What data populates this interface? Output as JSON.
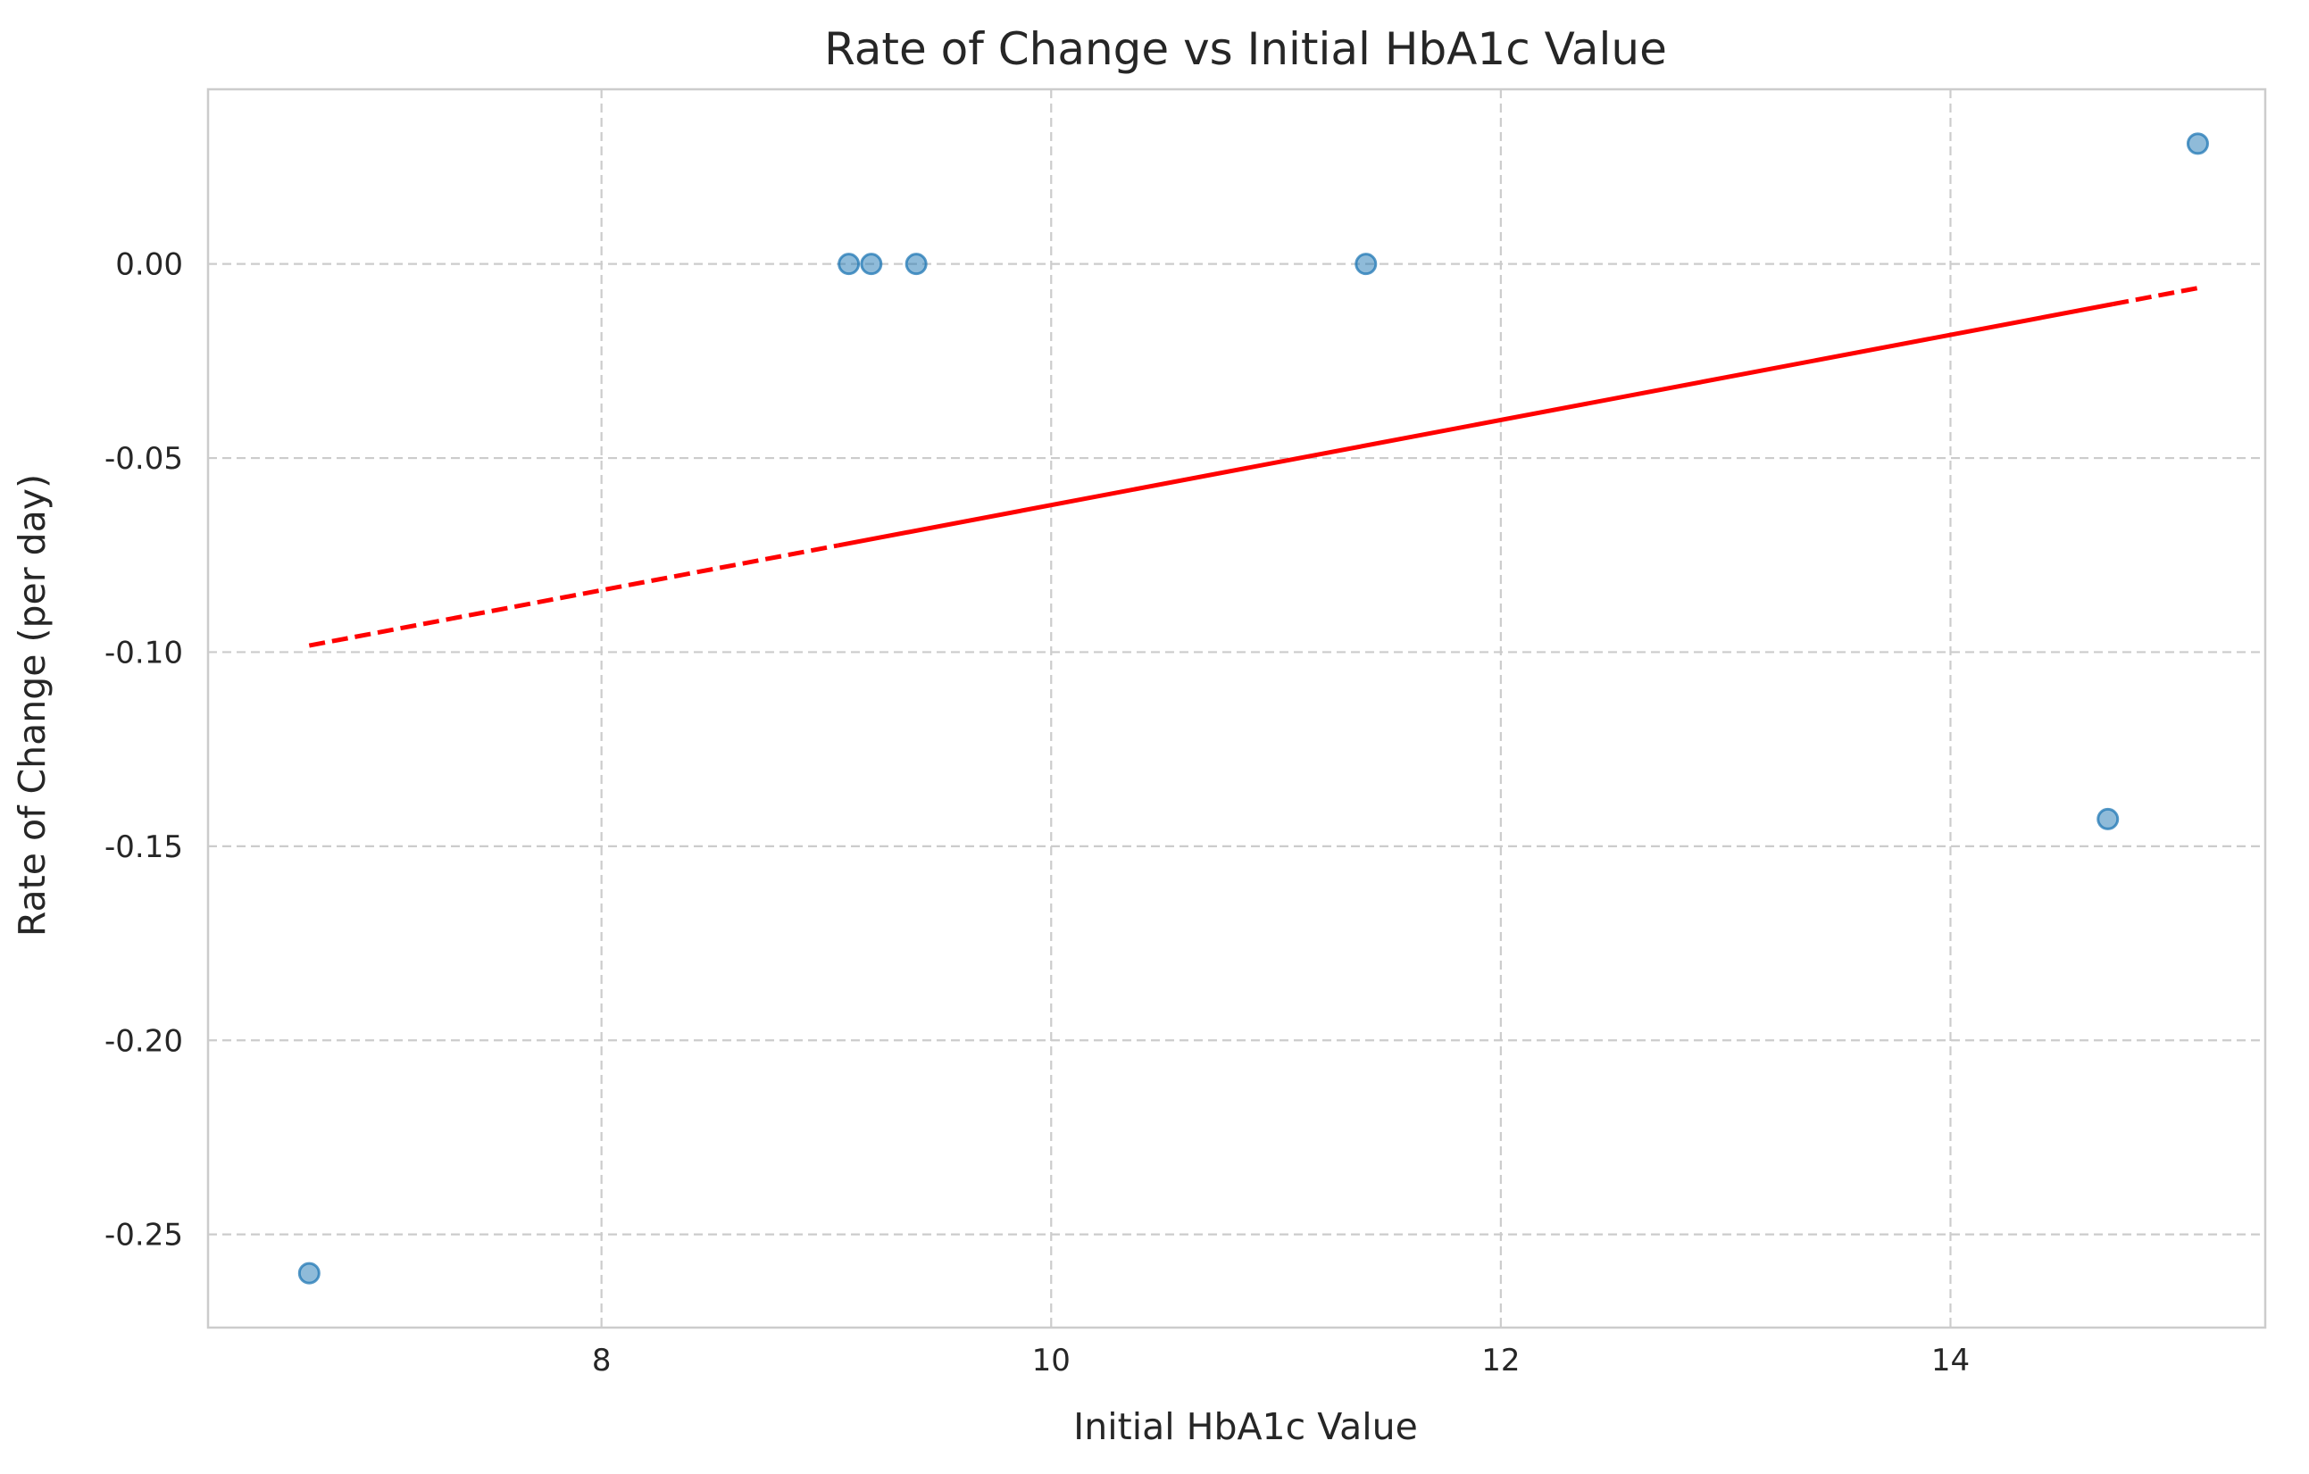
{
  "chart_data": {
    "type": "scatter",
    "title": "Rate of Change vs Initial HbA1c Value",
    "xlabel": "Initial HbA1c Value",
    "ylabel": "Rate of Change (per day)",
    "xlim": [
      6.25,
      15.4
    ],
    "ylim": [
      -0.274,
      0.045
    ],
    "x_ticks": [
      8,
      10,
      12,
      14
    ],
    "x_tick_labels": [
      "8",
      "10",
      "12",
      "14"
    ],
    "y_ticks": [
      0.0,
      -0.05,
      -0.1,
      -0.15,
      -0.2,
      -0.25
    ],
    "y_tick_labels": [
      "0.00",
      "-0.05",
      "-0.10",
      "-0.15",
      "-0.20",
      "-0.25"
    ],
    "grid": true,
    "points": [
      {
        "x": 6.7,
        "y": -0.26
      },
      {
        "x": 9.1,
        "y": 0.0
      },
      {
        "x": 9.2,
        "y": 0.0
      },
      {
        "x": 9.4,
        "y": 0.0
      },
      {
        "x": 11.4,
        "y": 0.0
      },
      {
        "x": 14.7,
        "y": -0.143
      },
      {
        "x": 15.1,
        "y": 0.031
      }
    ],
    "trendline": {
      "x_start": 6.7,
      "y_start": -0.0983,
      "x_end": 15.1,
      "y_end": -0.0062
    },
    "colors": {
      "points": "#1f77b4",
      "trendline": "#ff0000"
    }
  }
}
